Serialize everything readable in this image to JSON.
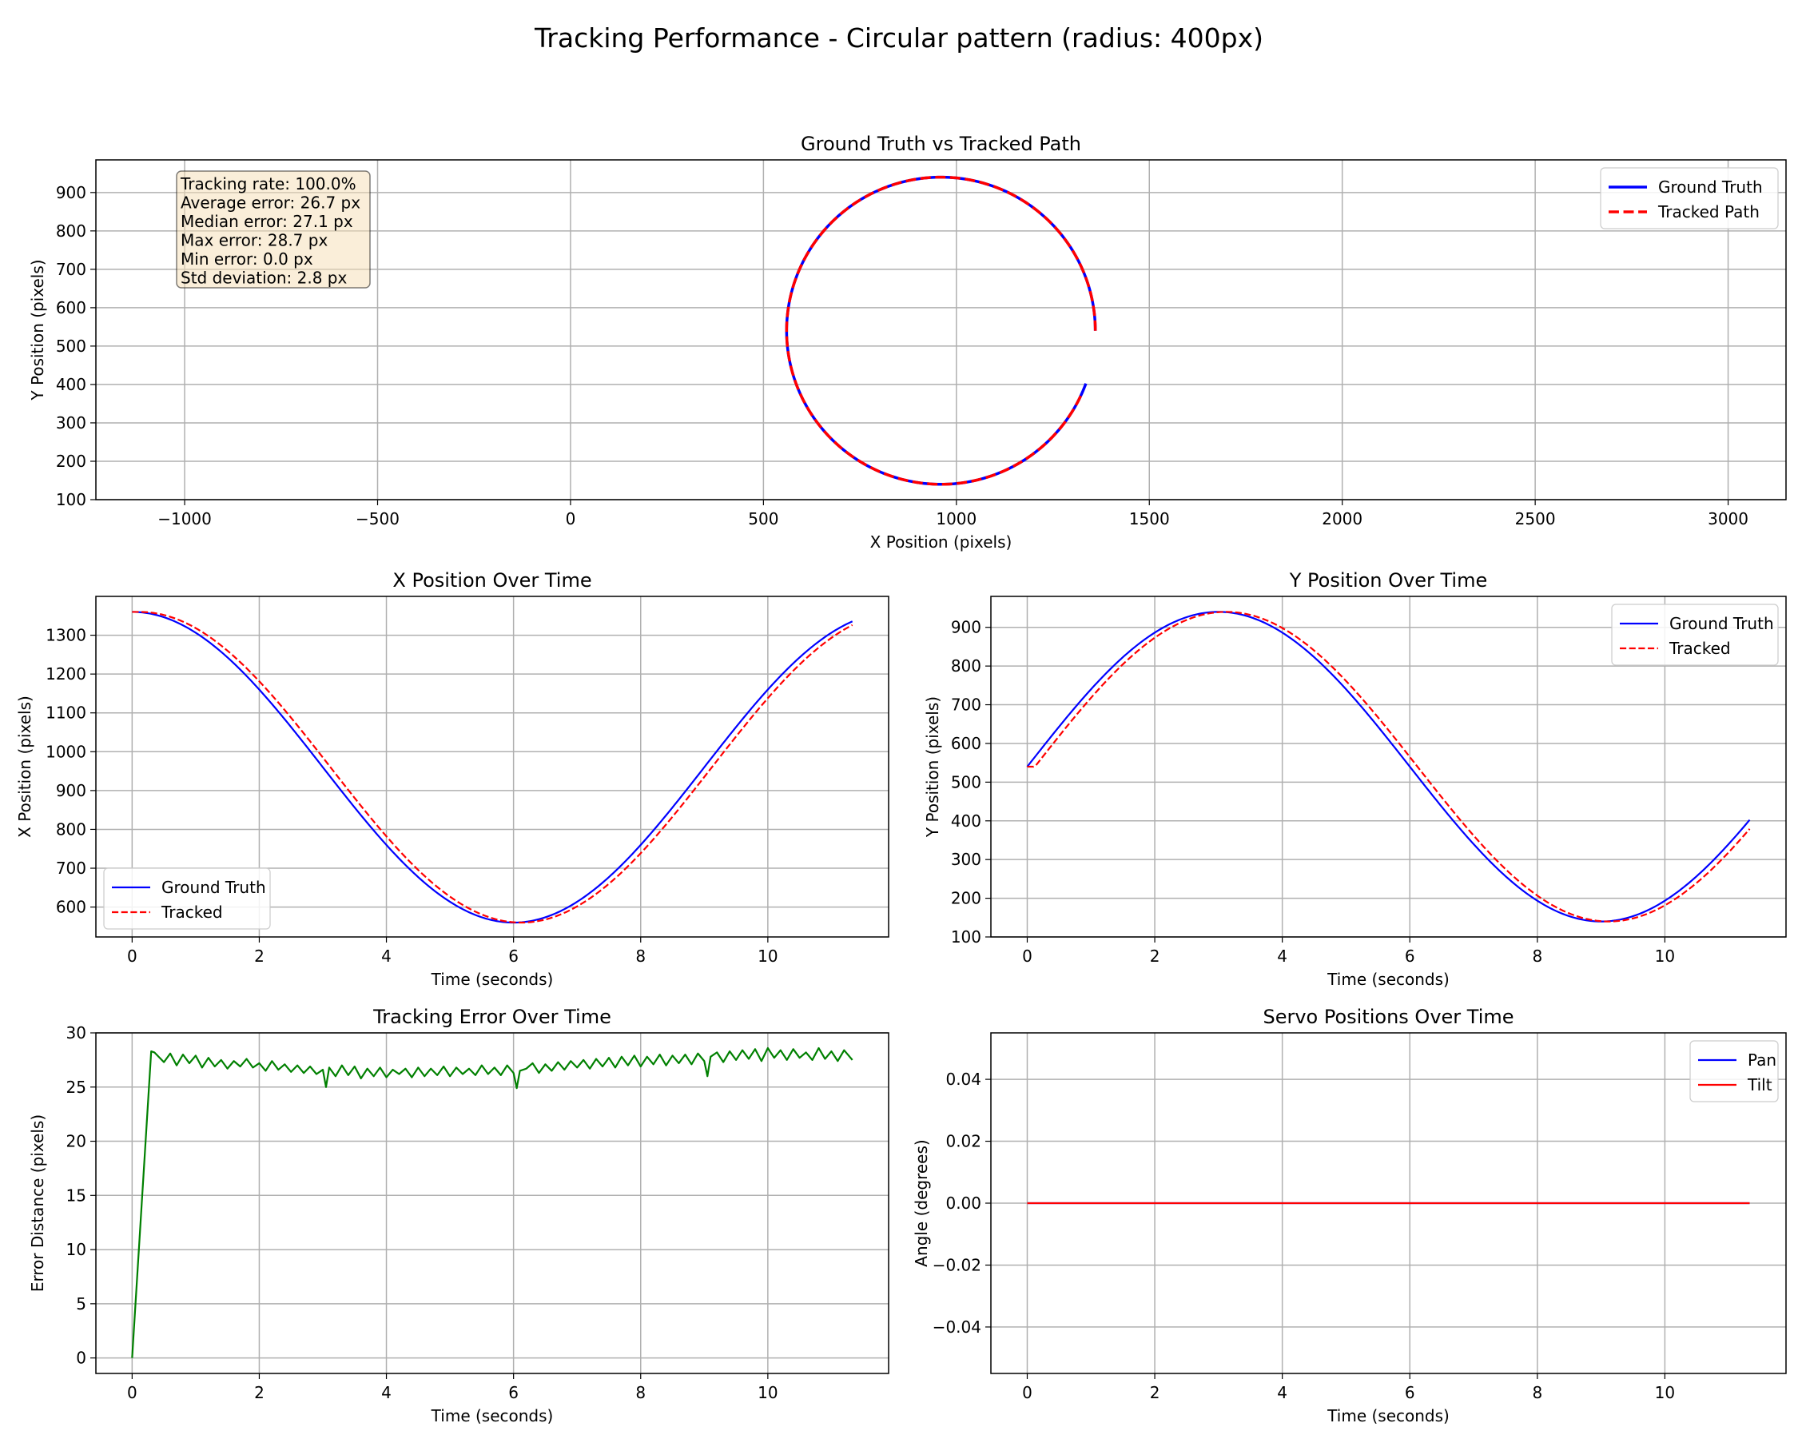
{
  "figure_title": "Tracking Performance - Circular pattern (radius: 400px)",
  "colors": {
    "ground_truth": "#0000ff",
    "tracked": "#ff0000",
    "error": "#008000",
    "pan": "#0000ff",
    "tilt": "#ff0000",
    "grid": "#b0b0b0",
    "stats_box": "#f5deb3"
  },
  "stats": {
    "lines": [
      "Tracking rate: 100.0%",
      "Average error: 26.7 px",
      "Median error: 27.1 px",
      "Max error: 28.7 px",
      "Min error: 0.0 px",
      "Std deviation: 2.8 px"
    ]
  },
  "chart_data": [
    {
      "id": "path",
      "type": "line",
      "title": "Ground Truth vs Tracked Path",
      "xlabel": "X Position (pixels)",
      "ylabel": "Y Position (pixels)",
      "xlim": [
        -1230,
        3150
      ],
      "ylim": [
        100,
        985
      ],
      "xticks": [
        -1000,
        -500,
        0,
        500,
        1000,
        1500,
        2000,
        2500,
        3000
      ],
      "xtick_labels": [
        "−1000",
        "−500",
        "0",
        "500",
        "1000",
        "1500",
        "2000",
        "2500",
        "3000"
      ],
      "yticks": [
        100,
        200,
        300,
        400,
        500,
        600,
        700,
        800,
        900
      ],
      "grid": true,
      "legend": "upper-right",
      "parametric": {
        "center_x": 960,
        "center_y": 540,
        "radius": 400,
        "period_s": 12,
        "duration_s": 11.33,
        "lag_s": 0.12
      },
      "series": [
        {
          "name": "Ground Truth",
          "role": "ground_truth",
          "style": "solid"
        },
        {
          "name": "Tracked Path",
          "role": "tracked",
          "style": "dashed"
        }
      ]
    },
    {
      "id": "xpos",
      "type": "line",
      "title": "X Position Over Time",
      "xlabel": "Time (seconds)",
      "ylabel": "X Position (pixels)",
      "xlim": [
        -0.57,
        11.9
      ],
      "ylim": [
        523,
        1400
      ],
      "xticks": [
        0,
        2,
        4,
        6,
        8,
        10
      ],
      "yticks": [
        600,
        700,
        800,
        900,
        1000,
        1100,
        1200,
        1300
      ],
      "grid": true,
      "legend": "lower-left",
      "series": [
        {
          "name": "Ground Truth",
          "role": "ground_truth",
          "style": "solid"
        },
        {
          "name": "Tracked",
          "role": "tracked",
          "style": "dashed"
        }
      ]
    },
    {
      "id": "ypos",
      "type": "line",
      "title": "Y Position Over Time",
      "xlabel": "Time (seconds)",
      "ylabel": "Y Position (pixels)",
      "xlim": [
        -0.57,
        11.9
      ],
      "ylim": [
        100,
        980
      ],
      "xticks": [
        0,
        2,
        4,
        6,
        8,
        10
      ],
      "yticks": [
        100,
        200,
        300,
        400,
        500,
        600,
        700,
        800,
        900
      ],
      "grid": true,
      "legend": "upper-right",
      "series": [
        {
          "name": "Ground Truth",
          "role": "ground_truth",
          "style": "solid"
        },
        {
          "name": "Tracked",
          "role": "tracked",
          "style": "dashed"
        }
      ]
    },
    {
      "id": "error",
      "type": "line",
      "title": "Tracking Error Over Time",
      "xlabel": "Time (seconds)",
      "ylabel": "Error Distance (pixels)",
      "xlim": [
        -0.57,
        11.9
      ],
      "ylim": [
        -1.43,
        30
      ],
      "xticks": [
        0,
        2,
        4,
        6,
        8,
        10
      ],
      "yticks": [
        0,
        5,
        10,
        15,
        20,
        25,
        30
      ],
      "grid": true,
      "legend": "none",
      "series": [
        {
          "name": "",
          "role": "error",
          "style": "solid",
          "x": [
            0,
            0.3,
            0.35,
            0.5,
            0.6,
            0.7,
            0.8,
            0.9,
            1.0,
            1.1,
            1.2,
            1.3,
            1.4,
            1.5,
            1.6,
            1.7,
            1.8,
            1.9,
            2.0,
            2.1,
            2.2,
            2.3,
            2.4,
            2.5,
            2.6,
            2.7,
            2.8,
            2.9,
            3.0,
            3.05,
            3.1,
            3.2,
            3.3,
            3.4,
            3.5,
            3.6,
            3.7,
            3.8,
            3.9,
            4.0,
            4.1,
            4.2,
            4.3,
            4.4,
            4.5,
            4.6,
            4.7,
            4.8,
            4.9,
            5.0,
            5.1,
            5.2,
            5.3,
            5.4,
            5.5,
            5.6,
            5.7,
            5.8,
            5.9,
            6.0,
            6.05,
            6.1,
            6.2,
            6.3,
            6.4,
            6.5,
            6.6,
            6.7,
            6.8,
            6.9,
            7.0,
            7.1,
            7.2,
            7.3,
            7.4,
            7.5,
            7.6,
            7.7,
            7.8,
            7.9,
            8.0,
            8.1,
            8.2,
            8.3,
            8.4,
            8.5,
            8.6,
            8.7,
            8.8,
            8.9,
            9.0,
            9.05,
            9.1,
            9.2,
            9.3,
            9.4,
            9.5,
            9.6,
            9.7,
            9.8,
            9.9,
            10.0,
            10.1,
            10.2,
            10.3,
            10.4,
            10.5,
            10.6,
            10.7,
            10.8,
            10.9,
            11.0,
            11.1,
            11.2,
            11.33
          ],
          "y": [
            0,
            28.3,
            28.2,
            27.3,
            28.1,
            27.0,
            28.0,
            27.2,
            27.9,
            26.8,
            27.7,
            26.9,
            27.5,
            26.7,
            27.4,
            26.9,
            27.6,
            26.8,
            27.2,
            26.5,
            27.4,
            26.6,
            27.1,
            26.4,
            27.0,
            26.3,
            26.9,
            26.2,
            26.6,
            25.0,
            26.8,
            26.0,
            27.0,
            26.1,
            26.9,
            25.8,
            26.7,
            26.0,
            26.8,
            25.9,
            26.6,
            26.2,
            26.7,
            25.9,
            26.8,
            26.0,
            26.7,
            26.1,
            26.9,
            26.0,
            26.8,
            26.2,
            26.7,
            26.1,
            27.0,
            26.2,
            26.8,
            26.1,
            27.0,
            26.3,
            24.9,
            26.5,
            26.7,
            27.2,
            26.3,
            27.1,
            26.5,
            27.3,
            26.6,
            27.4,
            26.8,
            27.5,
            26.7,
            27.6,
            26.9,
            27.7,
            26.8,
            27.8,
            27.0,
            27.9,
            26.9,
            27.8,
            27.1,
            28.0,
            27.0,
            27.9,
            27.2,
            28.0,
            27.1,
            28.1,
            27.4,
            26.0,
            27.8,
            28.2,
            27.3,
            28.3,
            27.5,
            28.4,
            27.6,
            28.5,
            27.4,
            28.6,
            27.7,
            28.4,
            27.5,
            28.5,
            27.7,
            28.2,
            27.5,
            28.6,
            27.6,
            28.3,
            27.4,
            28.4,
            27.5
          ]
        }
      ]
    },
    {
      "id": "servo",
      "type": "line",
      "title": "Servo Positions Over Time",
      "xlabel": "Time (seconds)",
      "ylabel": "Angle (degrees)",
      "xlim": [
        -0.57,
        11.9
      ],
      "ylim": [
        -0.055,
        0.055
      ],
      "xticks": [
        0,
        2,
        4,
        6,
        8,
        10
      ],
      "yticks": [
        -0.04,
        -0.02,
        0.0,
        0.02,
        0.04
      ],
      "ytick_labels": [
        "−0.04",
        "−0.02",
        "0.00",
        "0.02",
        "0.04"
      ],
      "grid": true,
      "legend": "upper-right",
      "series": [
        {
          "name": "Pan",
          "role": "pan",
          "style": "solid",
          "x": [
            0,
            11.33
          ],
          "y": [
            0,
            0
          ]
        },
        {
          "name": "Tilt",
          "role": "tilt",
          "style": "solid",
          "x": [
            0,
            11.33
          ],
          "y": [
            0,
            0
          ]
        }
      ]
    }
  ]
}
